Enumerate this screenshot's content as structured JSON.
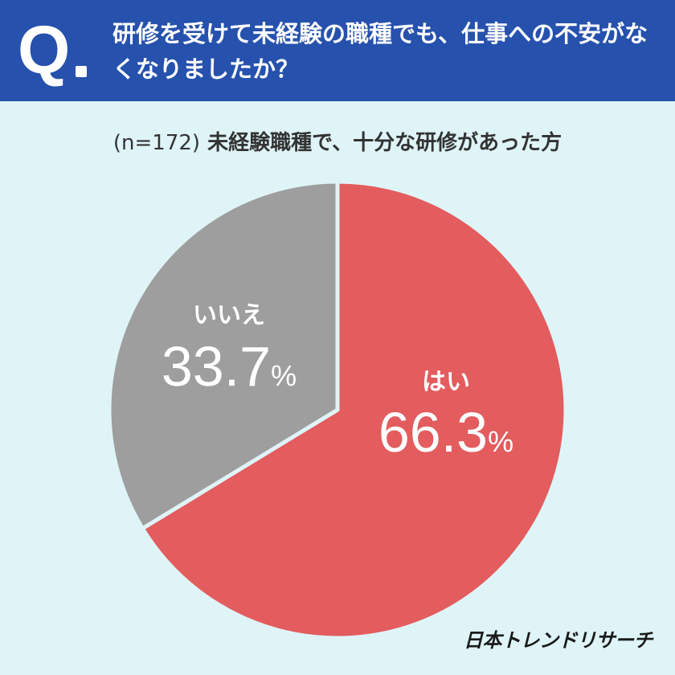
{
  "question": {
    "mark": "Q",
    "text": "研修を受けて未経験の職種でも、仕事への不安がなくなりましたか？"
  },
  "subtitle": {
    "sample": "(n=172)",
    "text": "未経験職種で、十分な研修があった方"
  },
  "chart_data": {
    "type": "pie",
    "title": "研修を受けて未経験の職種でも、仕事への不安がなくなりましたか？",
    "subtitle": "(n=172) 未経験職種で、十分な研修があった方",
    "categories": [
      "はい",
      "いいえ"
    ],
    "values": [
      66.3,
      33.7
    ],
    "unit": "%",
    "colors": [
      "#e35c5e",
      "#9e9e9e"
    ],
    "start": "12 o'clock, clockwise",
    "labels": [
      {
        "name": "はい",
        "value_text": "66.3"
      },
      {
        "name": "いいえ",
        "value_text": "33.7"
      }
    ]
  },
  "footer": {
    "brand": "日本トレンドリサーチ"
  }
}
